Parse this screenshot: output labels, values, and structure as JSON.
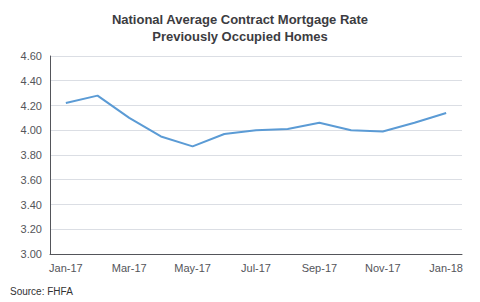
{
  "chart_data": {
    "type": "line",
    "title": "National Average Contract Mortgage Rate\nPreviously Occupied Homes",
    "categories": [
      "Jan-17",
      null,
      "Mar-17",
      null,
      "May-17",
      null,
      "Jul-17",
      null,
      "Sep-17",
      null,
      "Nov-17",
      null,
      "Jan-18"
    ],
    "values": [
      4.22,
      4.28,
      4.1,
      3.95,
      3.87,
      3.97,
      4.0,
      4.01,
      4.06,
      4.0,
      3.99,
      4.06,
      4.14
    ],
    "color": "#5B9BD5",
    "ylim": [
      3.0,
      4.6
    ],
    "yticks": [
      {
        "value": 3.0,
        "label": "3.00"
      },
      {
        "value": 3.2,
        "label": "3.20"
      },
      {
        "value": 3.4,
        "label": "3.40"
      },
      {
        "value": 3.6,
        "label": "3.60"
      },
      {
        "value": 3.8,
        "label": "3.80"
      },
      {
        "value": 4.0,
        "label": "4.00"
      },
      {
        "value": 4.2,
        "label": "4.20"
      },
      {
        "value": 4.4,
        "label": "4.40"
      },
      {
        "value": 4.6,
        "label": "4.60"
      }
    ],
    "grid": true,
    "source": "Source: FHFA"
  }
}
